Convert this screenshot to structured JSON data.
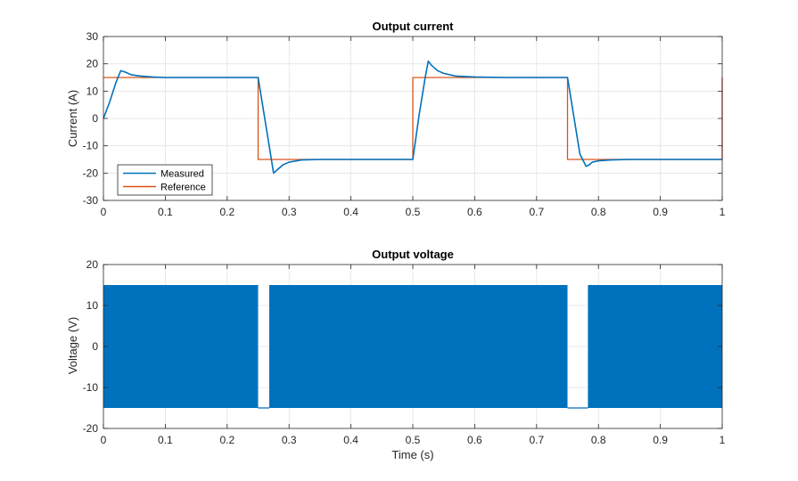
{
  "chart_data": [
    {
      "type": "line",
      "title": "Output current",
      "xlabel": "",
      "ylabel": "Current (A)",
      "xlim": [
        0,
        1
      ],
      "ylim": [
        -30,
        30
      ],
      "xticks": [
        0,
        0.1,
        0.2,
        0.3,
        0.4,
        0.5,
        0.6,
        0.7,
        0.8,
        0.9,
        1
      ],
      "xtick_labels": [
        "0",
        "0.1",
        "0.2",
        "0.3",
        "0.4",
        "0.5",
        "0.6",
        "0.7",
        "0.8",
        "0.9",
        "1"
      ],
      "yticks": [
        -30,
        -20,
        -10,
        0,
        10,
        20,
        30
      ],
      "ytick_labels": [
        "-30",
        "-20",
        "-10",
        "0",
        "10",
        "20",
        "30"
      ],
      "grid": true,
      "legend": "bottom-left",
      "series": [
        {
          "name": "Measured",
          "color": "#0072BD",
          "x": [
            0,
            0.01,
            0.02,
            0.028,
            0.035,
            0.045,
            0.06,
            0.08,
            0.1,
            0.15,
            0.2,
            0.25,
            0.26,
            0.27,
            0.275,
            0.28,
            0.29,
            0.3,
            0.32,
            0.35,
            0.4,
            0.45,
            0.5,
            0.51,
            0.52,
            0.525,
            0.53,
            0.54,
            0.55,
            0.57,
            0.6,
            0.65,
            0.7,
            0.75,
            0.76,
            0.77,
            0.78,
            0.785,
            0.79,
            0.8,
            0.82,
            0.85,
            0.9,
            0.95,
            1.0
          ],
          "y": [
            0,
            6,
            13,
            17.5,
            17,
            16,
            15.5,
            15.2,
            15,
            15,
            15,
            15,
            1,
            -13,
            -20,
            -19,
            -17,
            -16,
            -15.2,
            -15,
            -15,
            -15,
            -15,
            1,
            15,
            21,
            19.5,
            17.5,
            16.5,
            15.5,
            15.2,
            15,
            15,
            15,
            1,
            -13,
            -17.5,
            -17,
            -16,
            -15.5,
            -15.2,
            -15,
            -15,
            -15,
            -15
          ]
        },
        {
          "name": "Reference",
          "color": "#D95319",
          "x": [
            0,
            0.25,
            0.25,
            0.5,
            0.5,
            0.75,
            0.75,
            1.0,
            1.0
          ],
          "y": [
            15,
            15,
            -15,
            -15,
            15,
            15,
            -15,
            -15,
            15
          ]
        }
      ]
    },
    {
      "type": "area",
      "title": "Output voltage",
      "xlabel": "Time (s)",
      "ylabel": "Voltage (V)",
      "xlim": [
        0,
        1
      ],
      "ylim": [
        -20,
        20
      ],
      "xticks": [
        0,
        0.1,
        0.2,
        0.3,
        0.4,
        0.5,
        0.6,
        0.7,
        0.8,
        0.9,
        1
      ],
      "xtick_labels": [
        "0",
        "0.1",
        "0.2",
        "0.3",
        "0.4",
        "0.5",
        "0.6",
        "0.7",
        "0.8",
        "0.9",
        "1"
      ],
      "yticks": [
        -20,
        -10,
        0,
        10,
        20
      ],
      "ytick_labels": [
        "-20",
        "-10",
        "0",
        "10",
        "20"
      ],
      "grid": true,
      "color": "#0072BD",
      "description": "PWM switching between +15 V and -15 V",
      "switching_bands": [
        {
          "x_start": 0,
          "x_end": 0.25,
          "y_min": -15,
          "y_max": 15
        },
        {
          "x_start": 0.268,
          "x_end": 0.5,
          "y_min": -15,
          "y_max": 15
        },
        {
          "x_start": 0.5,
          "x_end": 0.75,
          "y_min": -15,
          "y_max": 15
        },
        {
          "x_start": 0.783,
          "x_end": 1.0,
          "y_min": -15,
          "y_max": 15
        }
      ],
      "constant_segments": [
        {
          "x": [
            0.25,
            0.268
          ],
          "y": [
            -15,
            -15
          ]
        },
        {
          "x": [
            0.75,
            0.783
          ],
          "y": [
            -15,
            -15
          ]
        }
      ]
    }
  ]
}
